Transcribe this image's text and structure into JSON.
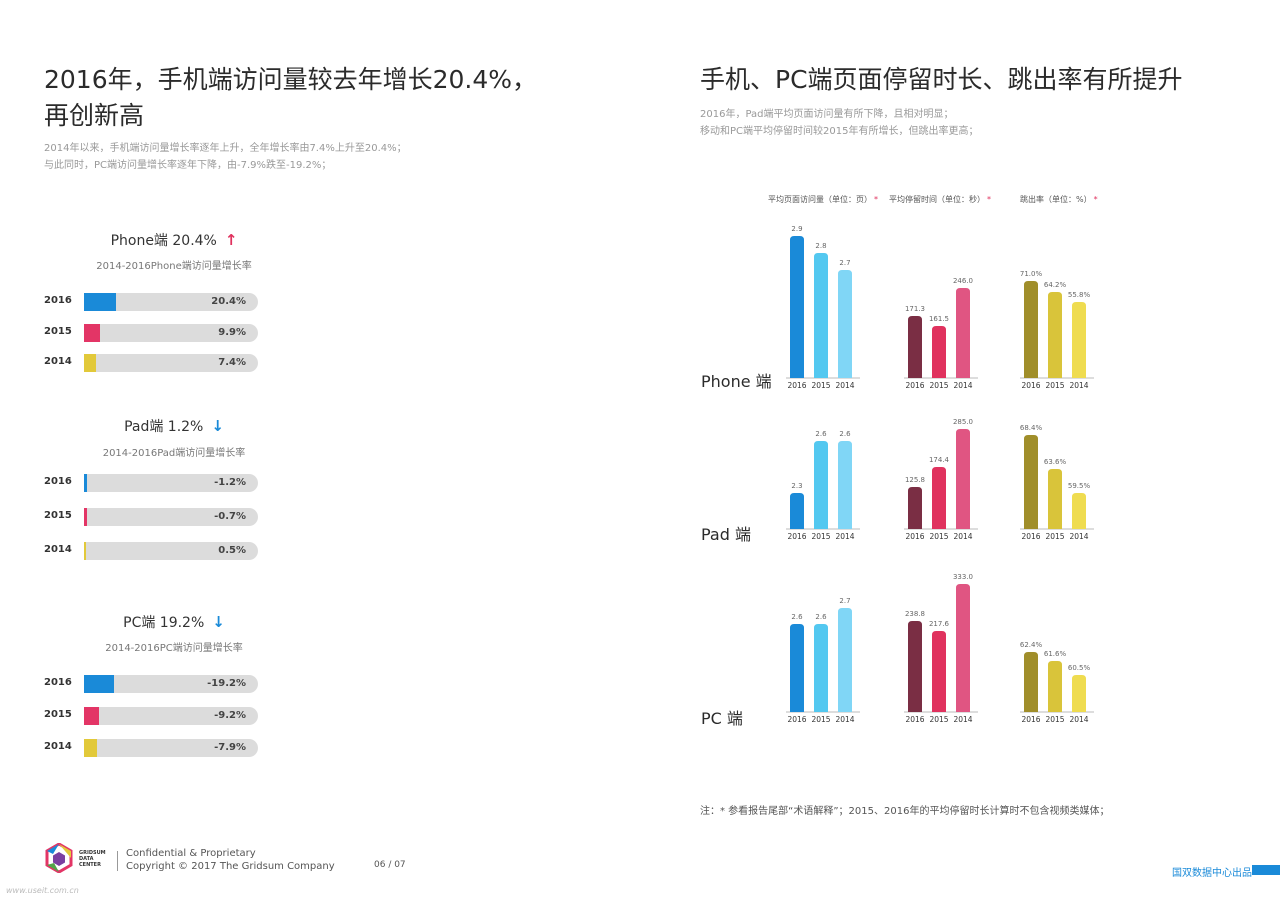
{
  "left": {
    "title_line1": "2016年，手机端访问量较去年增长20.4%，",
    "title_line2": "再创新高",
    "desc_line1": "2014年以来，手机端访问量增长率逐年上升，全年增长率由7.4%上升至20.4%；",
    "desc_line2": "与此同时，PC端访问量增长率逐年下降，由-7.9%跌至-19.2%；"
  },
  "right": {
    "title": "手机、PC端页面停留时长、跳出率有所提升",
    "desc_line1": "2016年，Pad端平均页面访问量有所下降，且相对明显；",
    "desc_line2": "移动和PC端平均停留时间较2015年有所增长，但跳出率更高；",
    "legend": [
      "平均页面访问量（单位：页）",
      "平均停留时间（单位：秒）",
      "跳出率（单位：%）"
    ],
    "legend_star": "*",
    "note": "注：* 参看报告尾部“术语解释”；2015、2016年的平均停留时长计算时不包含视频类媒体；"
  },
  "footer": {
    "logo_lines": [
      "GRIDSUM",
      "DATA",
      "CENTER"
    ],
    "line1": "Confidential & Proprietary",
    "line2": "Copyright © 2017 The Gridsum Company",
    "page": "06 / 07",
    "brand": "国双数据中心出品",
    "watermark": "www.useit.com.cn"
  },
  "colors": {
    "y2016": "#1a8ad8",
    "y2015": "#e33566",
    "y2014": "#e2c93a",
    "up": "#e0325e",
    "down": "#1a8ad8",
    "visits": [
      "#1a8ad8",
      "#53c8f0",
      "#80d6f6"
    ],
    "duration": [
      "#7a2e44",
      "#e0325e",
      "#e05582"
    ],
    "bounce": [
      "#a08e2a",
      "#d9c43a",
      "#efdc50"
    ]
  },
  "chart_data": [
    {
      "type": "bar",
      "orientation": "horizontal",
      "title": "Phone端 20.4%",
      "title_arrow": "↑",
      "subtitle": "2014-2016Phone端访问量增长率",
      "categories": [
        "2016",
        "2015",
        "2014"
      ],
      "values": [
        20.4,
        9.9,
        7.4
      ],
      "labels": [
        "20.4%",
        "9.9%",
        "7.4%"
      ]
    },
    {
      "type": "bar",
      "orientation": "horizontal",
      "title": "Pad端 1.2%",
      "title_arrow": "↓",
      "subtitle": "2014-2016Pad端访问量增长率",
      "categories": [
        "2016",
        "2015",
        "2014"
      ],
      "values": [
        -1.2,
        -0.7,
        0.5
      ],
      "labels": [
        "-1.2%",
        "-0.7%",
        "0.5%"
      ]
    },
    {
      "type": "bar",
      "orientation": "horizontal",
      "title": "PC端 19.2%",
      "title_arrow": "↓",
      "subtitle": "2014-2016PC端访问量增长率",
      "categories": [
        "2016",
        "2015",
        "2014"
      ],
      "values": [
        -19.2,
        -9.2,
        -7.9
      ],
      "labels": [
        "-19.2%",
        "-9.2%",
        "-7.9%"
      ]
    },
    {
      "type": "bar",
      "row_labels": [
        "Phone 端",
        "Pad 端",
        "PC 端"
      ],
      "categories": [
        "2016",
        "2015",
        "2014"
      ],
      "metrics": [
        {
          "name": "平均页面访问量（单位：页）",
          "series": [
            {
              "device": "Phone 端",
              "values": [
                2.9,
                2.8,
                2.7
              ],
              "labels": [
                "2.9",
                "2.8",
                "2.7"
              ]
            },
            {
              "device": "Pad 端",
              "values": [
                2.3,
                2.6,
                2.6
              ],
              "labels": [
                "2.3",
                "2.6",
                "2.6"
              ]
            },
            {
              "device": "PC 端",
              "values": [
                2.6,
                2.6,
                2.7
              ],
              "labels": [
                "2.6",
                "2.6",
                "2.7"
              ]
            }
          ]
        },
        {
          "name": "平均停留时间（单位：秒）",
          "series": [
            {
              "device": "Phone 端",
              "values": [
                171.3,
                161.5,
                246.0
              ],
              "labels": [
                "171.3",
                "161.5",
                "246.0"
              ]
            },
            {
              "device": "Pad 端",
              "values": [
                125.8,
                174.4,
                285.0
              ],
              "labels": [
                "125.8",
                "174.4",
                "285.0"
              ]
            },
            {
              "device": "PC 端",
              "values": [
                238.8,
                217.6,
                333.0
              ],
              "labels": [
                "238.8",
                "217.6",
                "333.0"
              ]
            }
          ]
        },
        {
          "name": "跳出率（单位：%）",
          "series": [
            {
              "device": "Phone 端",
              "values": [
                71.0,
                64.2,
                55.8
              ],
              "labels": [
                "71.0%",
                "64.2%",
                "55.8%"
              ]
            },
            {
              "device": "Pad 端",
              "values": [
                68.4,
                63.6,
                59.5
              ],
              "labels": [
                "68.4%",
                "63.6%",
                "59.5%"
              ]
            },
            {
              "device": "PC 端",
              "values": [
                62.4,
                61.6,
                60.5
              ],
              "labels": [
                "62.4%",
                "61.6%",
                "60.5%"
              ]
            }
          ]
        }
      ]
    }
  ]
}
